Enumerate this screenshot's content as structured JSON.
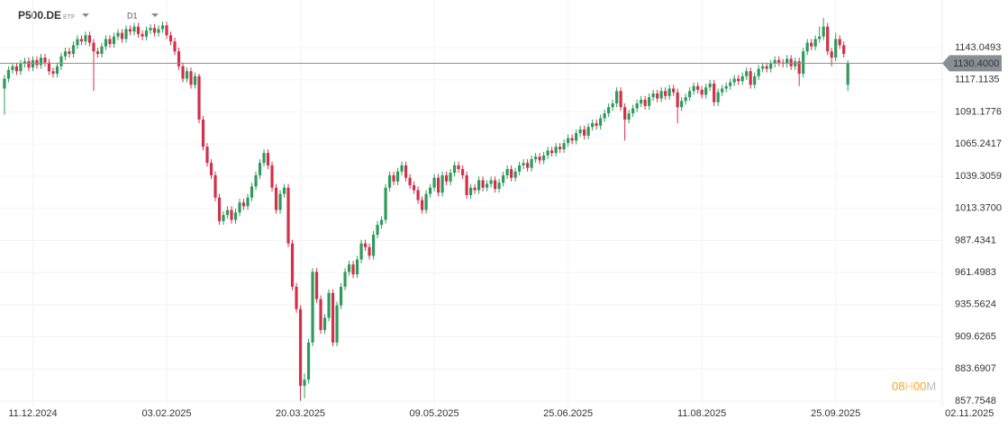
{
  "chart_data": {
    "type": "candlestick",
    "symbol": "P500.DE",
    "instrument_type": "ETF",
    "timeframe": "D1",
    "countdown": [
      "08",
      "H",
      "00",
      "M"
    ],
    "up_color": "#2e9b5b",
    "down_color": "#d3304a",
    "grid": true,
    "xlim": [
      -1.1,
      247.5
    ],
    "ylim": [
      853.4,
      1181.5
    ],
    "xticks": [
      {
        "value": 7,
        "label": "11.12.2024"
      },
      {
        "value": 40,
        "label": "03.02.2025"
      },
      {
        "value": 73,
        "label": "20.03.2025"
      },
      {
        "value": 106,
        "label": "09.05.2025"
      },
      {
        "value": 139,
        "label": "25.06.2025"
      },
      {
        "value": 172,
        "label": "11.08.2025"
      },
      {
        "value": 205,
        "label": "25.09.2025"
      },
      {
        "value": 238,
        "label": "02.11.2025"
      }
    ],
    "yticks": [
      1143.0493,
      1117.1135,
      1091.1776,
      1065.2417,
      1039.3059,
      {
        "value": 1013.37,
        "label": "1013.3700"
      },
      987.4341,
      961.4983,
      935.5624,
      909.6265,
      883.6907,
      857.7548
    ],
    "price_line": {
      "value": 1130.4,
      "label": "1130.4000"
    },
    "candles": [
      [
        1110,
        1121,
        1089,
        1118
      ],
      [
        1118,
        1128,
        1115,
        1125
      ],
      [
        1125,
        1131,
        1122,
        1128
      ],
      [
        1128,
        1131,
        1121,
        1124
      ],
      [
        1124,
        1133,
        1121,
        1130
      ],
      [
        1130,
        1135,
        1127,
        1132
      ],
      [
        1132,
        1135,
        1124,
        1127
      ],
      [
        1127,
        1136,
        1124,
        1133
      ],
      [
        1133,
        1136,
        1126,
        1129
      ],
      [
        1129,
        1138,
        1126,
        1135
      ],
      [
        1135,
        1138,
        1128,
        1131
      ],
      [
        1131,
        1134,
        1121,
        1124
      ],
      [
        1124,
        1127,
        1119,
        1122
      ],
      [
        1122,
        1131,
        1119,
        1128
      ],
      [
        1128,
        1139,
        1125,
        1136
      ],
      [
        1136,
        1143,
        1133,
        1140
      ],
      [
        1140,
        1143,
        1135,
        1138
      ],
      [
        1138,
        1148,
        1135,
        1145
      ],
      [
        1145,
        1153,
        1142,
        1150
      ],
      [
        1150,
        1153,
        1145,
        1148
      ],
      [
        1148,
        1156,
        1145,
        1153
      ],
      [
        1153,
        1156,
        1144,
        1147
      ],
      [
        1147,
        1150,
        1108,
        1140
      ],
      [
        1140,
        1143,
        1135,
        1138
      ],
      [
        1138,
        1147,
        1135,
        1144
      ],
      [
        1144,
        1153,
        1141,
        1150
      ],
      [
        1150,
        1153,
        1143,
        1146
      ],
      [
        1146,
        1155,
        1143,
        1152
      ],
      [
        1152,
        1158,
        1149,
        1155
      ],
      [
        1155,
        1158,
        1147,
        1150
      ],
      [
        1150,
        1161,
        1147,
        1158
      ],
      [
        1158,
        1161,
        1153,
        1156
      ],
      [
        1156,
        1163,
        1153,
        1160
      ],
      [
        1160,
        1163,
        1151,
        1154
      ],
      [
        1154,
        1157,
        1149,
        1152
      ],
      [
        1152,
        1160,
        1149,
        1157
      ],
      [
        1157,
        1162,
        1154,
        1159
      ],
      [
        1159,
        1162,
        1152,
        1155
      ],
      [
        1155,
        1161,
        1152,
        1158
      ],
      [
        1158,
        1164,
        1155,
        1161
      ],
      [
        1161,
        1164,
        1150,
        1153
      ],
      [
        1153,
        1156,
        1145,
        1148
      ],
      [
        1148,
        1151,
        1137,
        1140
      ],
      [
        1140,
        1143,
        1125,
        1128
      ],
      [
        1128,
        1131,
        1115,
        1118
      ],
      [
        1118,
        1127,
        1115,
        1124
      ],
      [
        1124,
        1127,
        1110,
        1113
      ],
      [
        1113,
        1123,
        1110,
        1120
      ],
      [
        1120,
        1122,
        1082,
        1085
      ],
      [
        1085,
        1088,
        1060,
        1063
      ],
      [
        1063,
        1066,
        1047,
        1050
      ],
      [
        1050,
        1053,
        1037,
        1040
      ],
      [
        1040,
        1043,
        1019,
        1022
      ],
      [
        1022,
        1025,
        1000,
        1003
      ],
      [
        1003,
        1011,
        1000,
        1008
      ],
      [
        1008,
        1015,
        1005,
        1012
      ],
      [
        1012,
        1015,
        1001,
        1004
      ],
      [
        1004,
        1013,
        1001,
        1010
      ],
      [
        1010,
        1021,
        1007,
        1018
      ],
      [
        1018,
        1021,
        1012,
        1015
      ],
      [
        1015,
        1025,
        1012,
        1022
      ],
      [
        1022,
        1034,
        1019,
        1031
      ],
      [
        1031,
        1043,
        1028,
        1040
      ],
      [
        1040,
        1053,
        1037,
        1050
      ],
      [
        1050,
        1061,
        1047,
        1058
      ],
      [
        1058,
        1061,
        1045,
        1048
      ],
      [
        1048,
        1051,
        1027,
        1030
      ],
      [
        1030,
        1033,
        1009,
        1012
      ],
      [
        1012,
        1028,
        1009,
        1025
      ],
      [
        1025,
        1033,
        1022,
        1030
      ],
      [
        1030,
        1033,
        982,
        985
      ],
      [
        985,
        988,
        947,
        950
      ],
      [
        950,
        953,
        929,
        932
      ],
      [
        932,
        935,
        858,
        870
      ],
      [
        870,
        880,
        860,
        875
      ],
      [
        875,
        908,
        872,
        905
      ],
      [
        905,
        965,
        902,
        962
      ],
      [
        962,
        965,
        937,
        940
      ],
      [
        940,
        943,
        912,
        915
      ],
      [
        915,
        928,
        912,
        925
      ],
      [
        925,
        948,
        922,
        945
      ],
      [
        945,
        948,
        902,
        905
      ],
      [
        905,
        938,
        902,
        935
      ],
      [
        935,
        953,
        932,
        950
      ],
      [
        950,
        965,
        947,
        962
      ],
      [
        962,
        971,
        959,
        968
      ],
      [
        968,
        971,
        957,
        960
      ],
      [
        960,
        975,
        957,
        972
      ],
      [
        972,
        988,
        969,
        985
      ],
      [
        985,
        988,
        979,
        982
      ],
      [
        982,
        985,
        972,
        975
      ],
      [
        975,
        995,
        972,
        992
      ],
      [
        992,
        1003,
        989,
        1000
      ],
      [
        1000,
        1007,
        997,
        1004
      ],
      [
        1004,
        1033,
        1001,
        1030
      ],
      [
        1030,
        1043,
        1027,
        1040
      ],
      [
        1040,
        1043,
        1032,
        1035
      ],
      [
        1035,
        1046,
        1032,
        1043
      ],
      [
        1043,
        1051,
        1040,
        1048
      ],
      [
        1048,
        1051,
        1035,
        1038
      ],
      [
        1038,
        1041,
        1029,
        1032
      ],
      [
        1032,
        1035,
        1025,
        1028
      ],
      [
        1028,
        1031,
        1017,
        1020
      ],
      [
        1020,
        1023,
        1009,
        1012
      ],
      [
        1012,
        1028,
        1009,
        1025
      ],
      [
        1025,
        1033,
        1022,
        1030
      ],
      [
        1030,
        1041,
        1027,
        1038
      ],
      [
        1038,
        1041,
        1023,
        1026
      ],
      [
        1026,
        1043,
        1023,
        1040
      ],
      [
        1040,
        1043,
        1032,
        1035
      ],
      [
        1035,
        1045,
        1032,
        1042
      ],
      [
        1042,
        1051,
        1039,
        1048
      ],
      [
        1048,
        1051,
        1042,
        1045
      ],
      [
        1045,
        1048,
        1037,
        1040
      ],
      [
        1040,
        1043,
        1021,
        1024
      ],
      [
        1024,
        1033,
        1021,
        1030
      ],
      [
        1030,
        1033,
        1025,
        1028
      ],
      [
        1028,
        1039,
        1025,
        1036
      ],
      [
        1036,
        1039,
        1027,
        1030
      ],
      [
        1030,
        1036,
        1027,
        1033
      ],
      [
        1033,
        1039,
        1030,
        1036
      ],
      [
        1036,
        1039,
        1026,
        1029
      ],
      [
        1029,
        1037,
        1026,
        1034
      ],
      [
        1034,
        1043,
        1031,
        1040
      ],
      [
        1040,
        1048,
        1037,
        1045
      ],
      [
        1045,
        1048,
        1035,
        1038
      ],
      [
        1038,
        1046,
        1035,
        1043
      ],
      [
        1043,
        1051,
        1040,
        1048
      ],
      [
        1048,
        1053,
        1045,
        1050
      ],
      [
        1050,
        1053,
        1043,
        1046
      ],
      [
        1046,
        1056,
        1043,
        1053
      ],
      [
        1053,
        1058,
        1050,
        1055
      ],
      [
        1055,
        1058,
        1049,
        1052
      ],
      [
        1052,
        1059,
        1049,
        1056
      ],
      [
        1056,
        1063,
        1053,
        1060
      ],
      [
        1060,
        1063,
        1055,
        1058
      ],
      [
        1058,
        1066,
        1055,
        1063
      ],
      [
        1063,
        1066,
        1058,
        1061
      ],
      [
        1061,
        1069,
        1058,
        1066
      ],
      [
        1066,
        1073,
        1063,
        1070
      ],
      [
        1070,
        1073,
        1065,
        1068
      ],
      [
        1068,
        1077,
        1065,
        1074
      ],
      [
        1074,
        1080,
        1071,
        1077
      ],
      [
        1077,
        1080,
        1069,
        1072
      ],
      [
        1072,
        1082,
        1069,
        1079
      ],
      [
        1079,
        1085,
        1076,
        1082
      ],
      [
        1082,
        1085,
        1077,
        1080
      ],
      [
        1080,
        1089,
        1077,
        1086
      ],
      [
        1086,
        1093,
        1083,
        1090
      ],
      [
        1090,
        1098,
        1087,
        1095
      ],
      [
        1095,
        1101,
        1092,
        1098
      ],
      [
        1098,
        1111,
        1095,
        1108
      ],
      [
        1108,
        1111,
        1092,
        1095
      ],
      [
        1095,
        1098,
        1068,
        1085
      ],
      [
        1085,
        1093,
        1082,
        1090
      ],
      [
        1090,
        1097,
        1087,
        1094
      ],
      [
        1094,
        1101,
        1091,
        1098
      ],
      [
        1098,
        1104,
        1095,
        1101
      ],
      [
        1101,
        1104,
        1093,
        1096
      ],
      [
        1096,
        1106,
        1093,
        1103
      ],
      [
        1103,
        1109,
        1100,
        1106
      ],
      [
        1106,
        1109,
        1099,
        1102
      ],
      [
        1102,
        1111,
        1099,
        1108
      ],
      [
        1108,
        1111,
        1101,
        1104
      ],
      [
        1104,
        1113,
        1101,
        1110
      ],
      [
        1110,
        1113,
        1104,
        1107
      ],
      [
        1107,
        1110,
        1082,
        1095
      ],
      [
        1095,
        1103,
        1092,
        1100
      ],
      [
        1100,
        1106,
        1097,
        1103
      ],
      [
        1103,
        1111,
        1100,
        1108
      ],
      [
        1108,
        1115,
        1105,
        1112
      ],
      [
        1112,
        1115,
        1106,
        1109
      ],
      [
        1109,
        1112,
        1102,
        1105
      ],
      [
        1105,
        1114,
        1102,
        1111
      ],
      [
        1111,
        1117,
        1108,
        1114
      ],
      [
        1114,
        1117,
        1096,
        1099
      ],
      [
        1099,
        1110,
        1096,
        1107
      ],
      [
        1107,
        1113,
        1104,
        1110
      ],
      [
        1110,
        1115,
        1107,
        1112
      ],
      [
        1112,
        1118,
        1109,
        1115
      ],
      [
        1115,
        1121,
        1112,
        1118
      ],
      [
        1118,
        1121,
        1113,
        1116
      ],
      [
        1116,
        1123,
        1113,
        1120
      ],
      [
        1120,
        1127,
        1117,
        1124
      ],
      [
        1124,
        1127,
        1110,
        1113
      ],
      [
        1113,
        1123,
        1110,
        1120
      ],
      [
        1120,
        1129,
        1117,
        1126
      ],
      [
        1126,
        1131,
        1123,
        1128
      ],
      [
        1128,
        1131,
        1123,
        1126
      ],
      [
        1126,
        1133,
        1123,
        1130
      ],
      [
        1130,
        1136,
        1127,
        1133
      ],
      [
        1133,
        1136,
        1128,
        1131
      ],
      [
        1131,
        1134,
        1127,
        1130
      ],
      [
        1130,
        1137,
        1127,
        1134
      ],
      [
        1134,
        1137,
        1125,
        1128
      ],
      [
        1128,
        1135,
        1125,
        1132
      ],
      [
        1132,
        1135,
        1112,
        1122
      ],
      [
        1122,
        1143,
        1119,
        1140
      ],
      [
        1140,
        1150,
        1137,
        1147
      ],
      [
        1147,
        1150,
        1141,
        1144
      ],
      [
        1144,
        1153,
        1141,
        1150
      ],
      [
        1150,
        1160,
        1147,
        1152
      ],
      [
        1152,
        1167,
        1149,
        1160
      ],
      [
        1160,
        1163,
        1137,
        1140
      ],
      [
        1140,
        1143,
        1128,
        1135
      ],
      [
        1135,
        1155,
        1132,
        1150
      ],
      [
        1150,
        1153,
        1142,
        1145
      ],
      [
        1145,
        1148,
        1135,
        1138
      ],
      [
        1113,
        1133,
        1108,
        1130.4
      ]
    ]
  }
}
